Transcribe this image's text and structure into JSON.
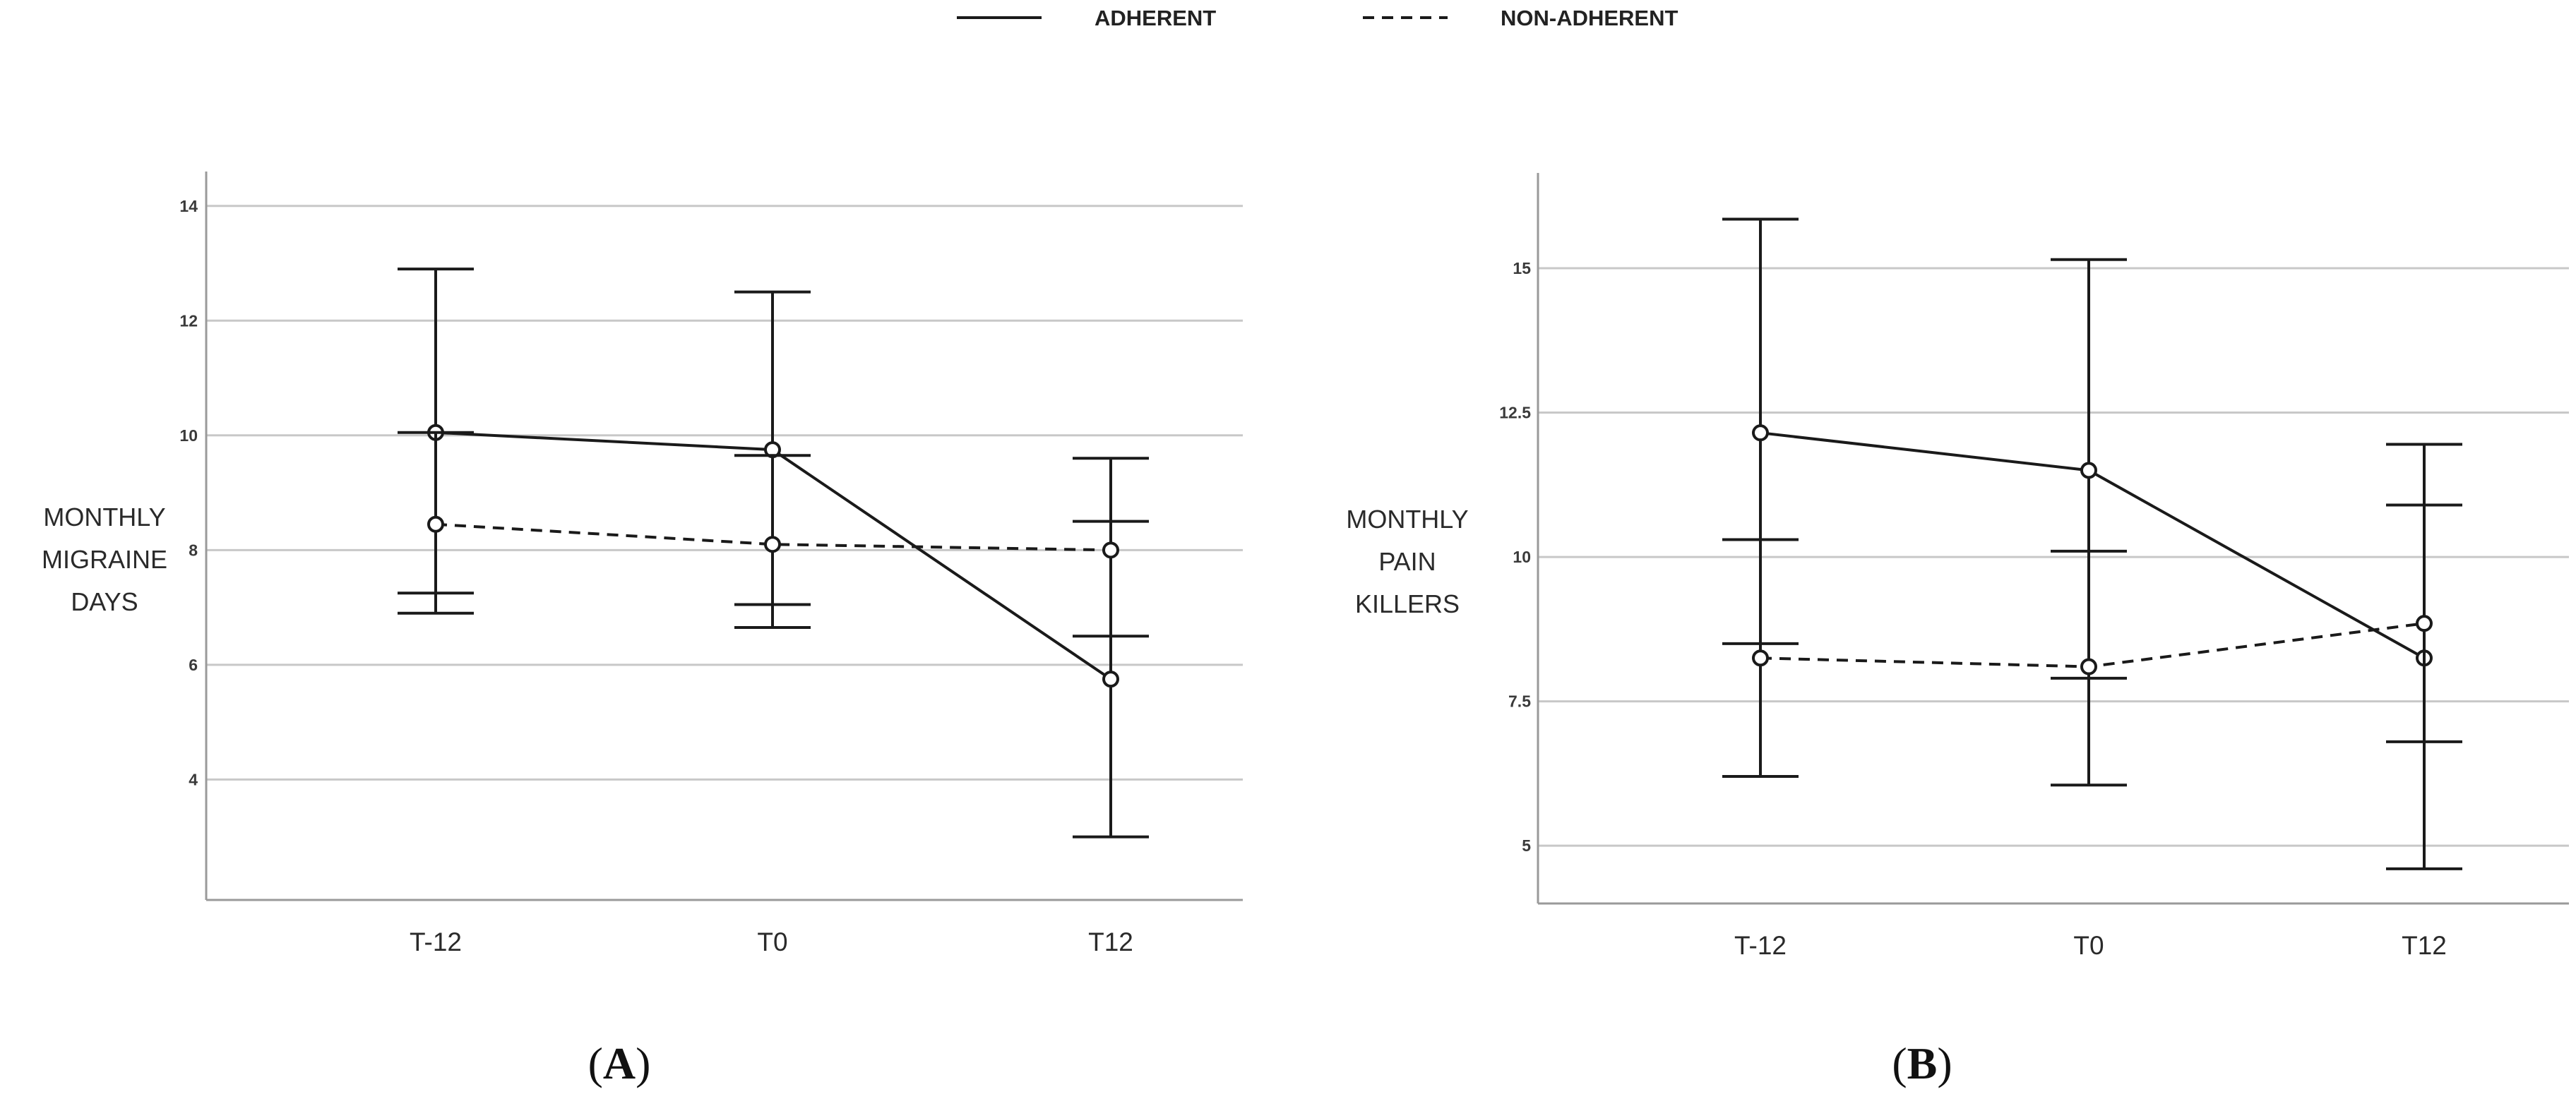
{
  "legend": {
    "items": [
      {
        "label": "ADHERENT",
        "style": "solid"
      },
      {
        "label": "NON-ADHERENT",
        "style": "dashed"
      }
    ]
  },
  "colors": {
    "line": "#1a1a1a",
    "grid": "#c8c8c8",
    "axis": "#9a9a9a"
  },
  "chart_data": [
    {
      "type": "line",
      "panel": "(A)",
      "panel_letter": "A",
      "title": "",
      "xlabel": "",
      "ylabel_lines": [
        "MONTHLY",
        "MIGRAINE",
        "DAYS"
      ],
      "categories": [
        "T-12",
        "T0",
        "T12"
      ],
      "ylim": [
        1.9,
        14.6
      ],
      "yticks": [
        4,
        6,
        8,
        10,
        12,
        14
      ],
      "ytick_labels": [
        "4",
        "6",
        "8",
        "10",
        "12",
        "14"
      ],
      "grid": true,
      "error_bars": true,
      "series": [
        {
          "name": "ADHERENT",
          "style": "solid",
          "values": [
            10.05,
            9.75,
            5.75
          ],
          "lower": [
            7.25,
            7.05,
            3.0
          ],
          "upper": [
            12.9,
            12.5,
            8.5
          ]
        },
        {
          "name": "NON-ADHERENT",
          "style": "dashed",
          "values": [
            8.45,
            8.1,
            8.0
          ],
          "lower": [
            6.9,
            6.65,
            6.5
          ],
          "upper": [
            10.05,
            9.65,
            9.6
          ]
        }
      ]
    },
    {
      "type": "line",
      "panel": "(B)",
      "panel_letter": "B",
      "title": "",
      "xlabel": "",
      "ylabel_lines": [
        "MONTHLY",
        "PAIN",
        "KILLERS"
      ],
      "categories": [
        "T-12",
        "T0",
        "T12"
      ],
      "ylim": [
        4.0,
        16.65
      ],
      "yticks": [
        5,
        7.5,
        10,
        12.5,
        15
      ],
      "ytick_labels": [
        "5",
        "7.5",
        "10",
        "12.5",
        "15"
      ],
      "grid": true,
      "error_bars": true,
      "series": [
        {
          "name": "ADHERENT",
          "style": "solid",
          "values": [
            12.15,
            11.5,
            8.25
          ],
          "lower": [
            8.5,
            7.9,
            4.6
          ],
          "upper": [
            15.85,
            15.15,
            11.95
          ]
        },
        {
          "name": "NON-ADHERENT",
          "style": "dashed",
          "values": [
            8.25,
            8.1,
            8.85
          ],
          "lower": [
            6.2,
            6.05,
            6.8
          ],
          "upper": [
            10.3,
            10.1,
            10.9
          ]
        }
      ]
    }
  ]
}
